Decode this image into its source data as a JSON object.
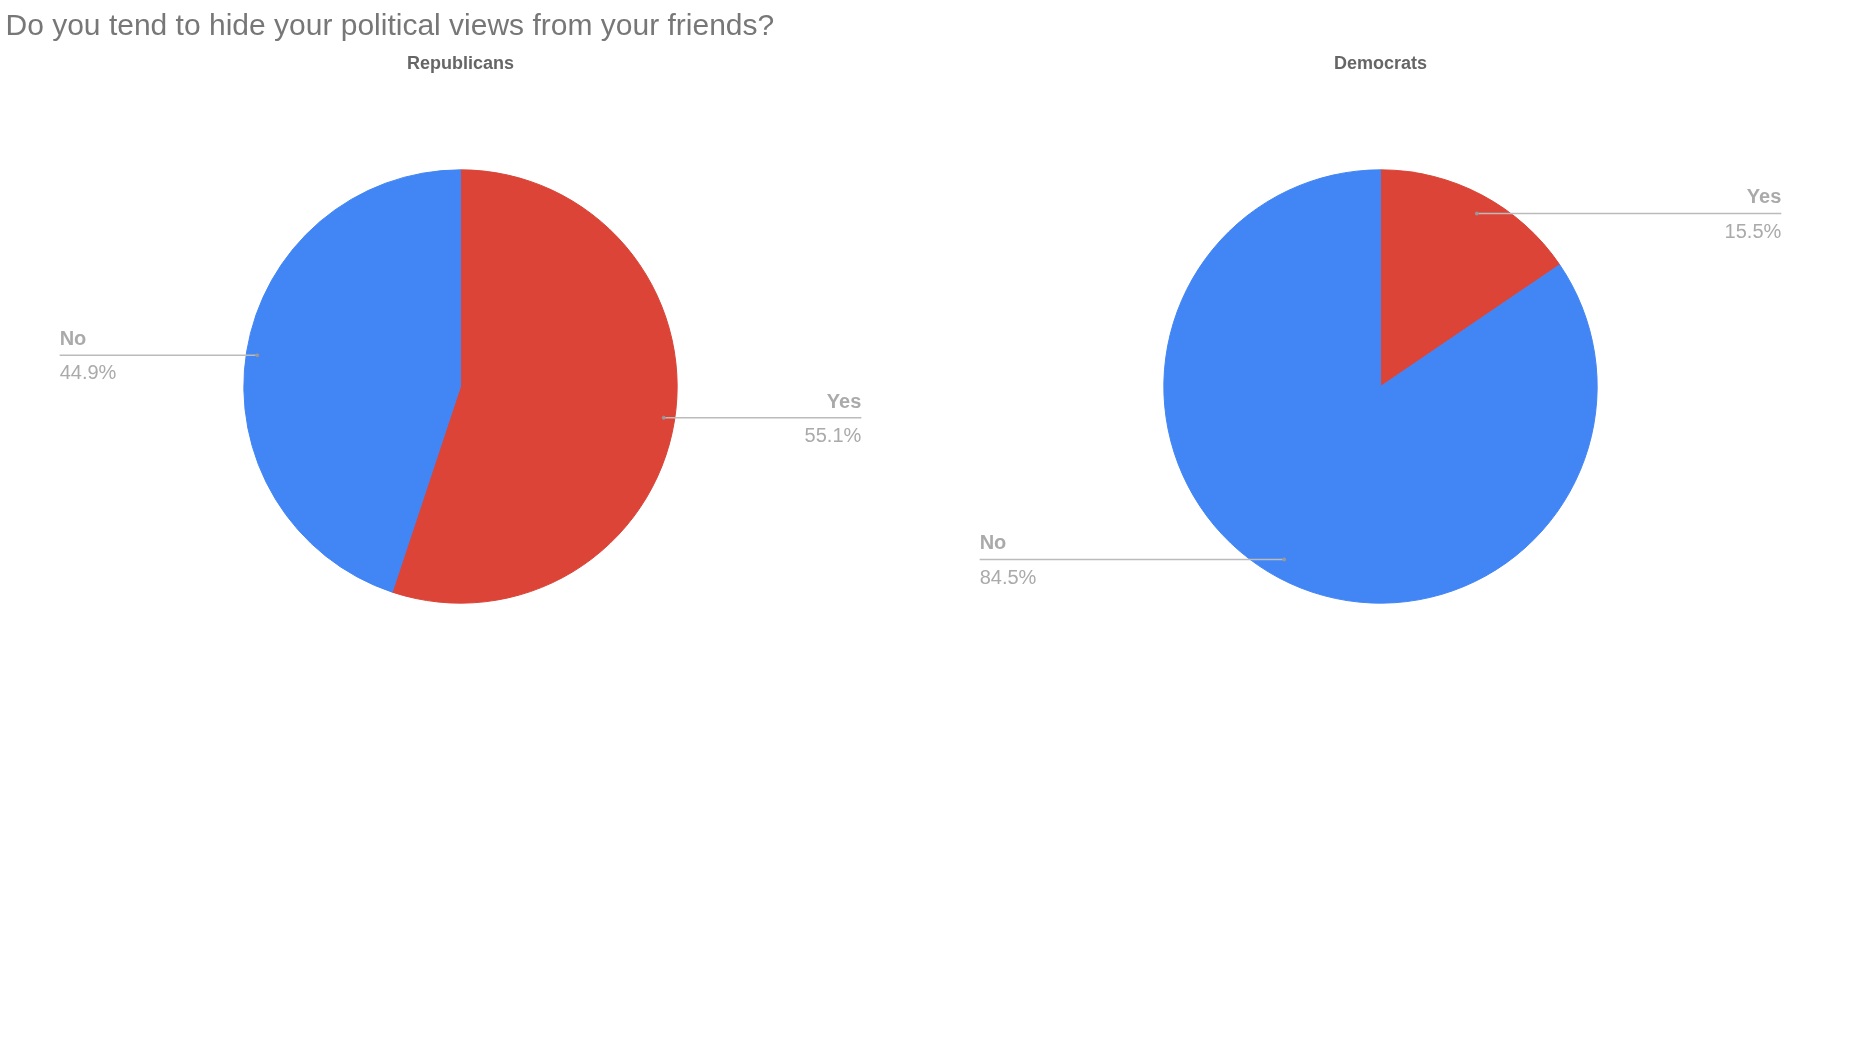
{
  "chart_data": [
    {
      "type": "pie",
      "title": "Do you tend to hide your political views from your friends?",
      "subtitle": "Republicans",
      "categories": [
        "Yes",
        "No"
      ],
      "values": [
        55.1,
        44.9
      ],
      "colors": [
        "#db4437",
        "#4285f4"
      ],
      "value_labels": [
        "55.1%",
        "44.9%"
      ],
      "legend": false
    },
    {
      "type": "pie",
      "subtitle": "Democrats",
      "categories": [
        "Yes",
        "No"
      ],
      "values": [
        15.5,
        84.5
      ],
      "colors": [
        "#db4437",
        "#4285f4"
      ],
      "value_labels": [
        "15.5%",
        "84.5%"
      ],
      "legend": false
    }
  ]
}
